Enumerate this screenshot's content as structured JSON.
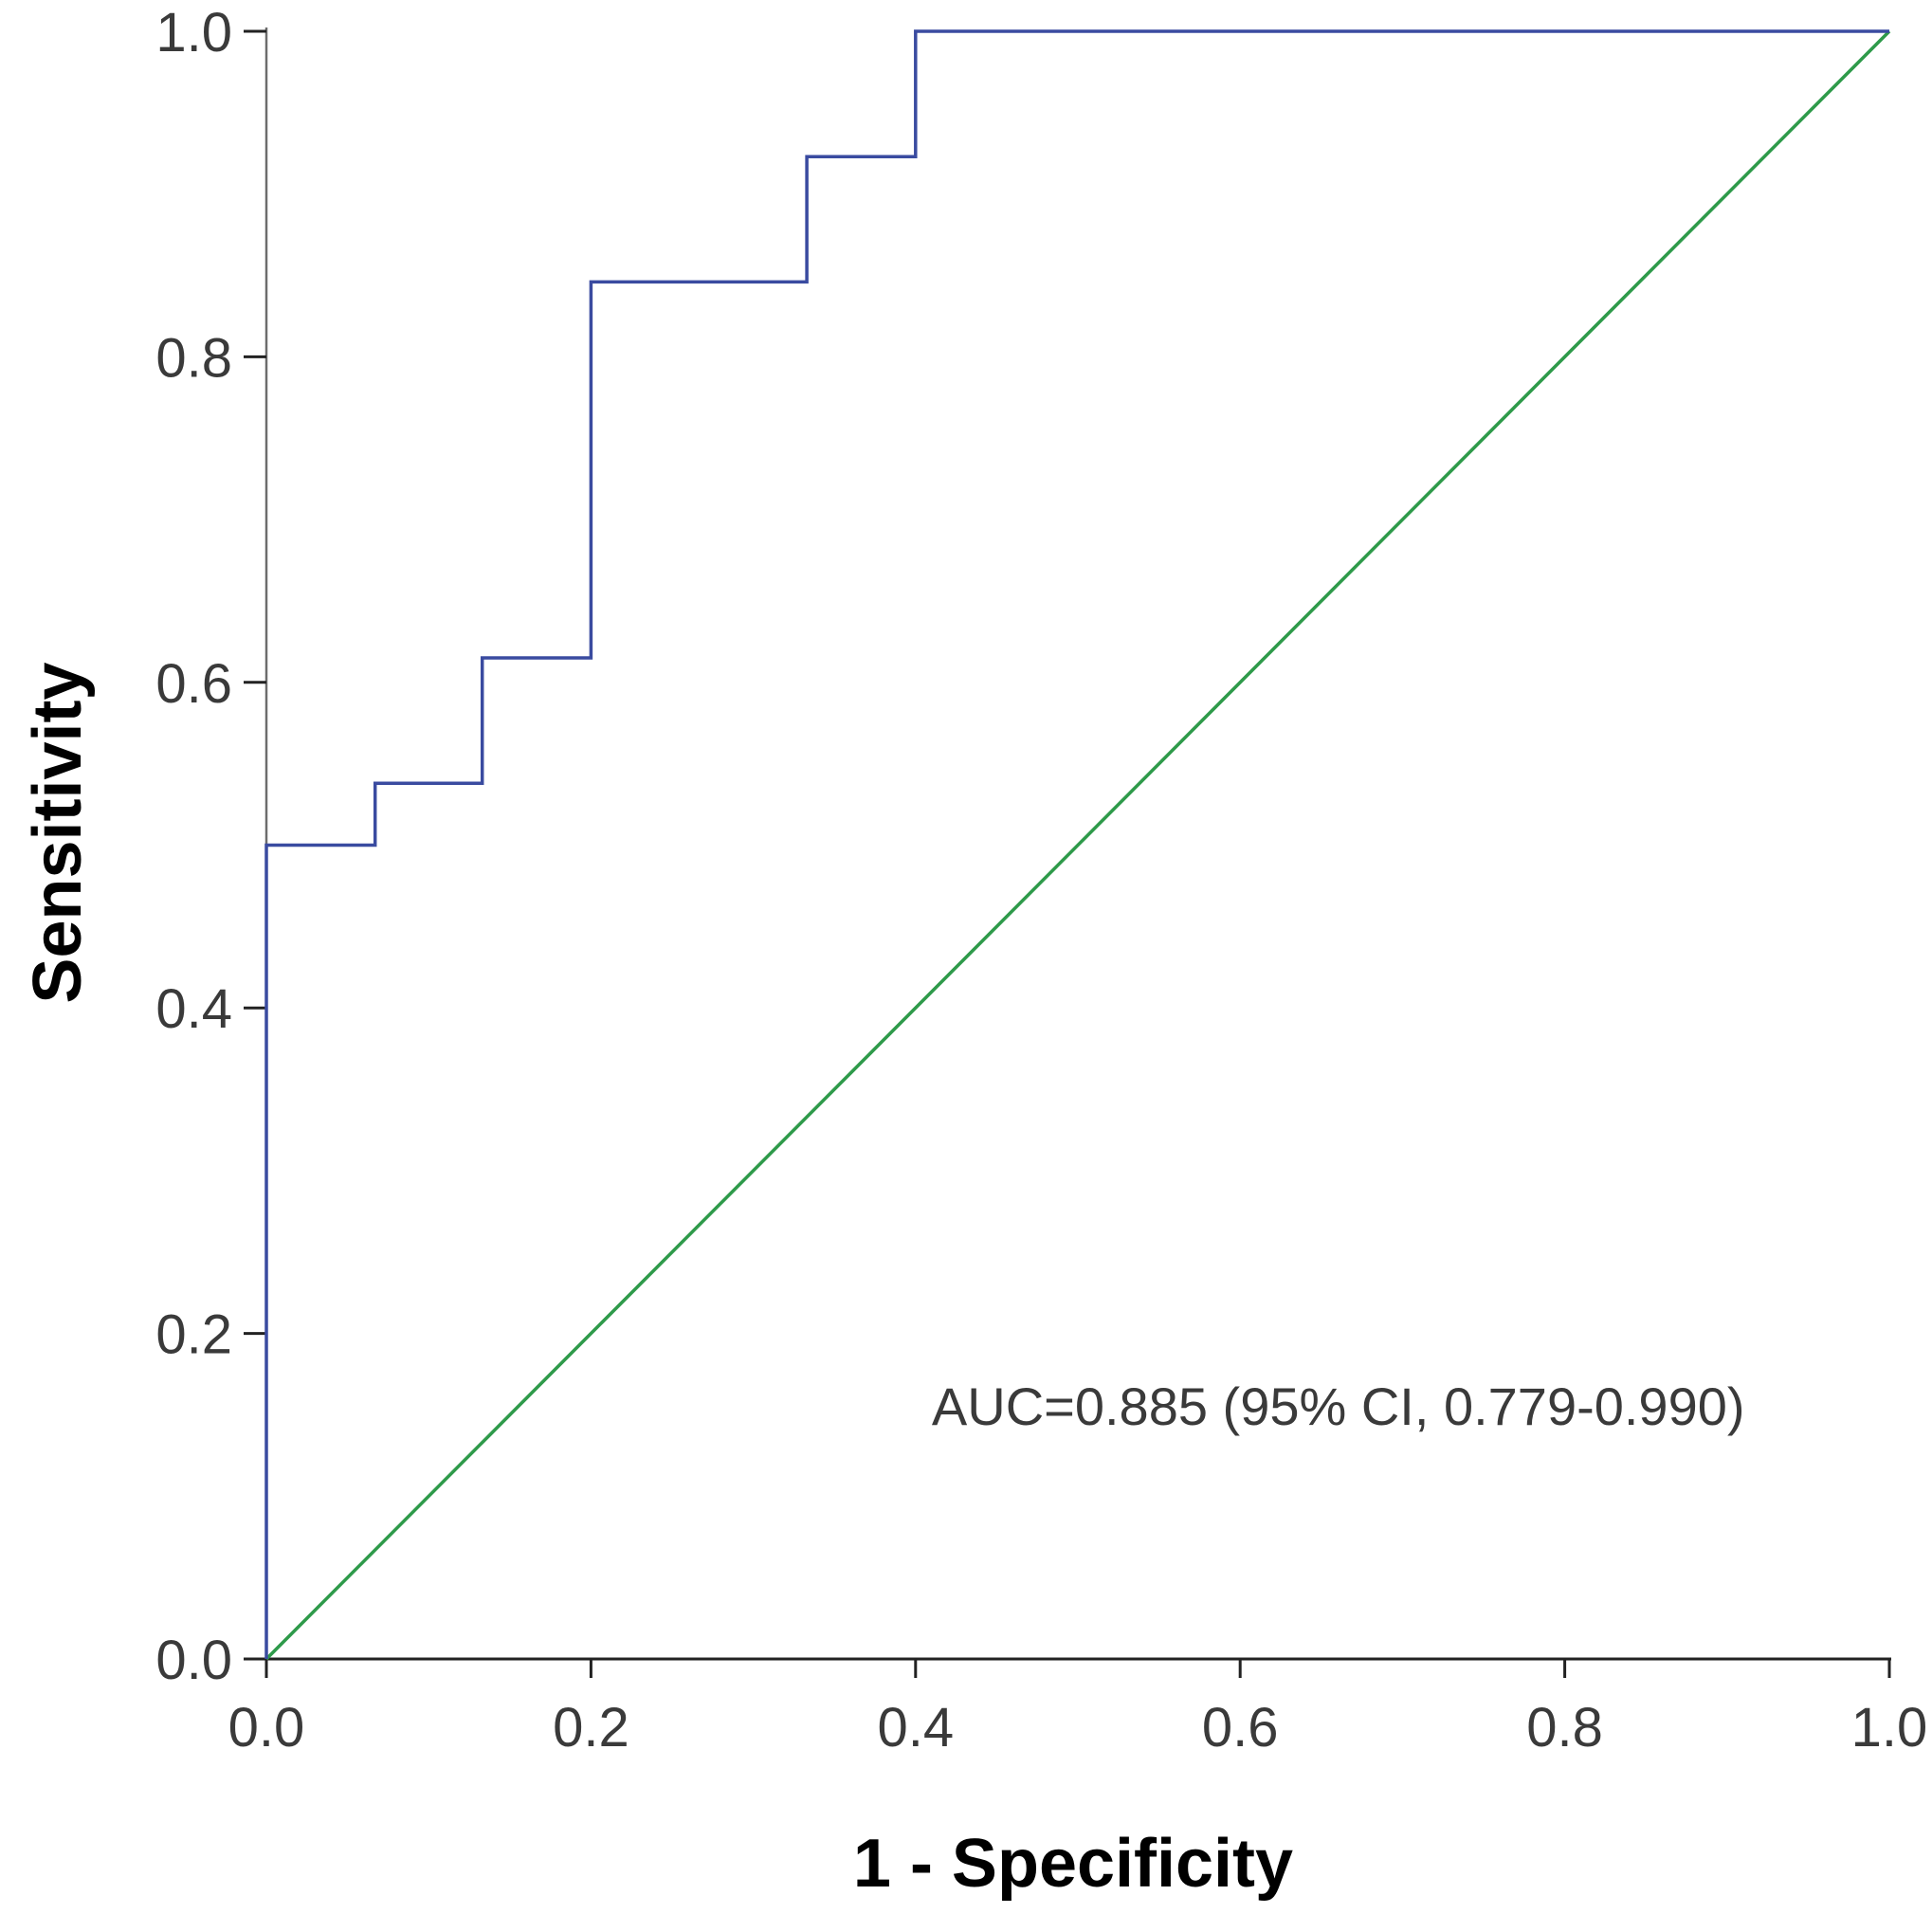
{
  "chart_data": {
    "type": "line",
    "title": "",
    "xlabel": "1 - Specificity",
    "ylabel": "Sensitivity",
    "xlim": [
      0,
      1
    ],
    "ylim": [
      0,
      1
    ],
    "x_ticks": [
      "0.0",
      "0.2",
      "0.4",
      "0.6",
      "0.8",
      "1.0"
    ],
    "y_ticks": [
      "0.0",
      "0.2",
      "0.4",
      "0.6",
      "0.8",
      "1.0"
    ],
    "grid": false,
    "legend": "none",
    "series": [
      {
        "color": "#3a4ba0",
        "step": true,
        "x": [
          0.0,
          0.0,
          0.067,
          0.067,
          0.133,
          0.133,
          0.2,
          0.2,
          0.333,
          0.333,
          0.4,
          0.4,
          1.0
        ],
        "y": [
          0.0,
          0.5,
          0.5,
          0.538,
          0.538,
          0.615,
          0.615,
          0.846,
          0.846,
          0.923,
          0.923,
          1.0,
          1.0
        ]
      },
      {
        "color": "#2e9a4a",
        "x": [
          0.0,
          1.0
        ],
        "y": [
          0.0,
          1.0
        ]
      }
    ],
    "annotations": [
      {
        "text": "AUC=0.885 (95% CI, 0.779-0.990)",
        "x": 0.41,
        "y": 0.155
      }
    ]
  }
}
